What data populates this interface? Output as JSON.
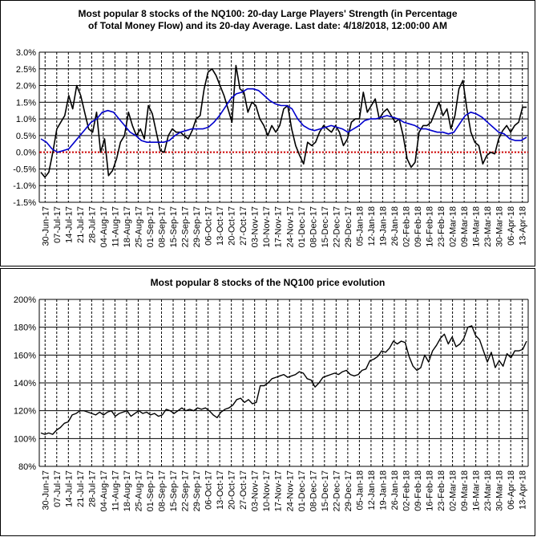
{
  "colors": {
    "strength": "#000000",
    "average": "#0000cc",
    "zero_line": "#cc0000",
    "grid": "#000000",
    "price": "#000000"
  },
  "chart_data": [
    {
      "type": "line",
      "title_lines": [
        "Most popular 8 stocks of the NQ100: 20-day Large Players' Strength (in Percentage",
        "of Total Money Flow) and its 20-day Average. Last date: 4/18/2018, 12:00:00 AM"
      ],
      "ylim": [
        -1.5,
        3.0
      ],
      "y_ticks": [
        "-1.5%",
        "-1.0%",
        "-0.5%",
        "0.0%",
        "0.5%",
        "1.0%",
        "1.5%",
        "2.0%",
        "2.5%",
        "3.0%"
      ],
      "x_ticks": [
        "30-Jun-17",
        "07-Jul-17",
        "14-Jul-17",
        "21-Jul-17",
        "28-Jul-17",
        "04-Aug-17",
        "11-Aug-17",
        "18-Aug-17",
        "25-Aug-17",
        "01-Sep-17",
        "08-Sep-17",
        "15-Sep-17",
        "22-Sep-17",
        "29-Sep-17",
        "06-Oct-17",
        "13-Oct-17",
        "20-Oct-17",
        "27-Oct-17",
        "03-Nov-17",
        "10-Nov-17",
        "17-Nov-17",
        "24-Nov-17",
        "01-Dec-17",
        "08-Dec-17",
        "15-Dec-17",
        "22-Dec-17",
        "29-Dec-17",
        "05-Jan-18",
        "12-Jan-18",
        "19-Jan-18",
        "26-Jan-18",
        "02-Feb-18",
        "09-Feb-18",
        "16-Feb-18",
        "23-Feb-18",
        "02-Mar-18",
        "09-Mar-18",
        "16-Mar-18",
        "23-Mar-18",
        "30-Mar-18",
        "06-Apr-18",
        "13-Apr-18"
      ],
      "grid": true,
      "series": [
        {
          "values": [
            -0.6,
            -0.75,
            -0.6,
            0.0,
            0.7,
            0.9,
            1.1,
            1.7,
            1.3,
            2.0,
            1.7,
            1.2,
            0.7,
            0.6,
            1.2,
            0.0,
            0.4,
            -0.7,
            -0.55,
            -0.2,
            0.3,
            0.5,
            1.2,
            0.8,
            0.5,
            0.7,
            0.4,
            1.4,
            1.15,
            0.6,
            0.05,
            0.0,
            0.5,
            0.7,
            0.6,
            0.6,
            0.5,
            0.4,
            0.65,
            1.0,
            1.1,
            1.9,
            2.4,
            2.5,
            2.3,
            2.0,
            1.7,
            1.3,
            0.9,
            2.6,
            1.9,
            1.8,
            1.2,
            1.5,
            1.4,
            1.0,
            0.8,
            0.5,
            0.8,
            0.6,
            0.8,
            1.3,
            1.4,
            0.7,
            0.2,
            -0.1,
            -0.35,
            0.3,
            0.2,
            0.3,
            0.6,
            0.8,
            0.7,
            0.6,
            0.8,
            0.6,
            0.2,
            0.4,
            0.9,
            1.0,
            1.0,
            1.8,
            1.2,
            1.4,
            1.6,
            1.0,
            1.2,
            1.3,
            1.1,
            0.9,
            1.0,
            0.5,
            -0.2,
            -0.45,
            -0.3,
            0.6,
            0.8,
            0.8,
            0.9,
            1.2,
            1.5,
            1.1,
            1.3,
            0.7,
            1.1,
            1.9,
            2.15,
            1.3,
            0.6,
            0.3,
            0.2,
            -0.35,
            -0.1,
            0.0,
            -0.05,
            0.4,
            0.65,
            0.8,
            0.6,
            0.8,
            0.9,
            1.35,
            1.35
          ]
        },
        {
          "values": [
            0.4,
            0.3,
            0.1,
            0.0,
            0.05,
            0.1,
            0.3,
            0.5,
            0.7,
            0.9,
            1.0,
            1.2,
            1.25,
            1.2,
            1.0,
            0.8,
            0.6,
            0.5,
            0.35,
            0.3,
            0.3,
            0.3,
            0.3,
            0.35,
            0.5,
            0.6,
            0.65,
            0.7,
            0.7,
            0.7,
            0.75,
            0.9,
            1.1,
            1.35,
            1.6,
            1.75,
            1.8,
            1.9,
            1.9,
            1.85,
            1.7,
            1.55,
            1.45,
            1.4,
            1.4,
            1.3,
            1.0,
            0.8,
            0.7,
            0.65,
            0.7,
            0.75,
            0.8,
            0.75,
            0.7,
            0.6,
            0.7,
            0.8,
            0.95,
            1.0,
            1.0,
            1.05,
            1.1,
            1.05,
            1.0,
            0.9,
            0.85,
            0.8,
            0.7,
            0.7,
            0.65,
            0.6,
            0.6,
            0.55,
            0.6,
            0.85,
            1.1,
            1.2,
            1.15,
            1.05,
            0.9,
            0.75,
            0.6,
            0.55,
            0.4,
            0.35,
            0.35,
            0.45
          ]
        }
      ]
    },
    {
      "type": "line",
      "title": "Most popular 8 stocks of the NQ100 price evolution",
      "ylim": [
        80,
        200
      ],
      "y_ticks": [
        "80%",
        "100%",
        "120%",
        "140%",
        "160%",
        "180%",
        "200%"
      ],
      "x_ticks": [
        "30-Jun-17",
        "07-Jul-17",
        "14-Jul-17",
        "21-Jul-17",
        "28-Jul-17",
        "04-Aug-17",
        "11-Aug-17",
        "18-Aug-17",
        "25-Aug-17",
        "01-Sep-17",
        "08-Sep-17",
        "15-Sep-17",
        "22-Sep-17",
        "29-Sep-17",
        "06-Oct-17",
        "13-Oct-17",
        "20-Oct-17",
        "27-Oct-17",
        "03-Nov-17",
        "10-Nov-17",
        "17-Nov-17",
        "24-Nov-17",
        "01-Dec-17",
        "08-Dec-17",
        "15-Dec-17",
        "22-Dec-17",
        "29-Dec-17",
        "05-Jan-18",
        "12-Jan-18",
        "19-Jan-18",
        "26-Jan-18",
        "02-Feb-18",
        "09-Feb-18",
        "16-Feb-18",
        "23-Feb-18",
        "02-Mar-18",
        "09-Mar-18",
        "16-Mar-18",
        "23-Mar-18",
        "30-Mar-18",
        "06-Apr-18",
        "13-Apr-18"
      ],
      "grid": true,
      "series": [
        {
          "values": [
            104,
            103,
            104,
            103,
            106,
            108,
            111,
            112,
            117,
            118,
            120,
            120,
            119,
            118,
            117,
            119,
            117,
            119,
            120,
            116,
            118,
            119,
            120,
            116,
            118,
            120,
            118,
            119,
            117,
            118,
            116,
            117,
            121,
            120,
            118,
            120,
            122,
            120,
            121,
            120,
            122,
            121,
            122,
            120,
            117,
            115,
            119,
            121,
            122,
            124,
            128,
            129,
            126,
            128,
            125,
            126,
            138,
            138,
            140,
            143,
            144,
            145,
            146,
            144,
            145,
            146,
            148,
            147,
            143,
            142,
            137,
            140,
            144,
            145,
            146,
            147,
            146,
            148,
            149,
            146,
            145,
            146,
            149,
            150,
            156,
            157,
            159,
            163,
            162,
            165,
            170,
            168,
            170,
            169,
            159,
            152,
            149,
            151,
            160,
            155,
            163,
            167,
            172,
            175,
            168,
            173,
            166,
            168,
            172,
            180,
            181,
            174,
            171,
            163,
            155,
            162,
            151,
            156,
            152,
            161,
            158,
            163,
            163,
            164,
            170
          ]
        }
      ]
    }
  ]
}
